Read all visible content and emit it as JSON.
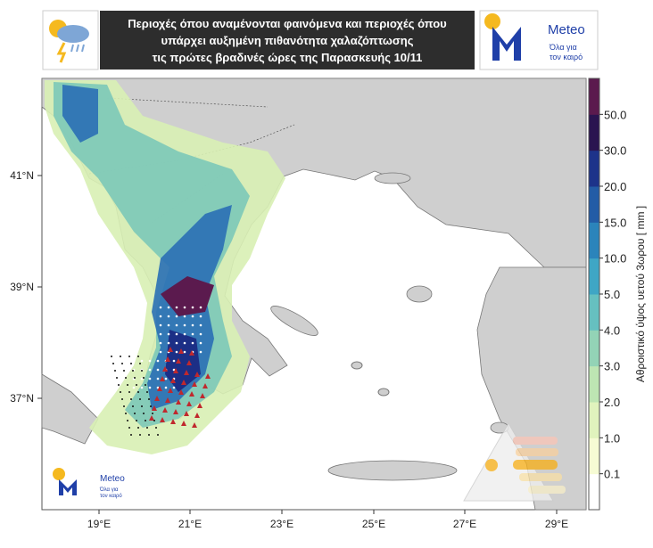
{
  "header": {
    "title_lines": [
      "Περιοχές όπου αναμένονται φαινόμενα και περιοχές όπου",
      "υπάρχει αυξημένη πιθανότητα χαλαζόπτωσης",
      "τις πρώτες βραδινές ώρες της Παρασκευής 10/11"
    ]
  },
  "logo": {
    "name": "Meteo",
    "tagline": [
      "Όλα για",
      "τον καιρό"
    ]
  },
  "map": {
    "x_labels": [
      "19°E",
      "21°E",
      "23°E",
      "25°E",
      "27°E",
      "29°E"
    ],
    "y_labels": [
      "41°N",
      "39°N",
      "37°N"
    ]
  },
  "colorbar": {
    "title": "Αθροιστικό ύψος υετού 3ωρου [ mm ]",
    "labels": [
      "50.0",
      "30.0",
      "20.0",
      "15.0",
      "10.0",
      "5.0",
      "4.0",
      "3.0",
      "2.0",
      "1.0",
      "0.1"
    ]
  }
}
